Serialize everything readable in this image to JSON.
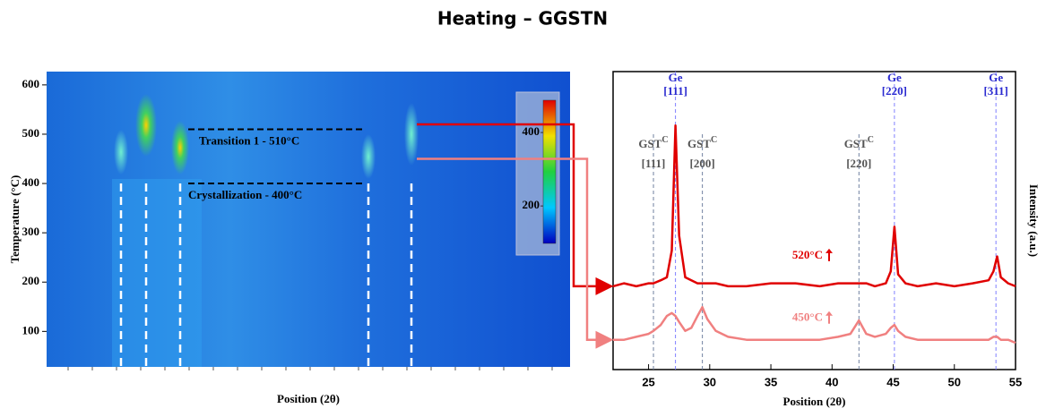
{
  "title": "Heating – GGSTN",
  "chart_data": [
    {
      "type": "heatmap",
      "ylabel": "Temperature (°C)",
      "xlabel": "Position (2θ)",
      "ylim": [
        28,
        627
      ],
      "yticks": [
        100,
        200,
        300,
        400,
        500,
        600
      ],
      "annotations": [
        {
          "text": "Transition 1 -  510°C",
          "temperature": 510
        },
        {
          "text": "Crystallization - 400°C",
          "temperature": 400
        }
      ],
      "colorbar": {
        "lim": [
          98,
          488
        ],
        "ticks": [
          200,
          400
        ]
      }
    },
    {
      "type": "line",
      "xlabel": "Position (2θ)",
      "ylabel": "Intensity (a.u.)",
      "xlim": [
        22.1,
        55
      ],
      "xticks": [
        25,
        30,
        35,
        40,
        45,
        50,
        55
      ],
      "ylim": [
        0,
        89
      ],
      "x": [
        22.1,
        23,
        24,
        25,
        25.4,
        26,
        26.5,
        26.9,
        27.2,
        27.5,
        28,
        28.5,
        29,
        29.4,
        29.8,
        30.5,
        31.5,
        33,
        35,
        37,
        39,
        40.5,
        41.5,
        42.2,
        42.8,
        43.5,
        44.4,
        44.8,
        45.1,
        45.4,
        46,
        47,
        48.5,
        50,
        51.5,
        52.8,
        53.2,
        53.5,
        53.8,
        54.4,
        55
      ],
      "series": [
        {
          "name": "520°C",
          "temperature": 520,
          "color": "#e00000",
          "values": [
            28,
            29,
            28,
            29,
            29,
            30,
            31,
            40,
            82,
            45,
            31,
            30,
            29,
            29,
            29,
            29,
            28,
            28,
            29,
            29,
            28,
            29,
            29,
            29,
            29,
            28,
            29,
            33,
            48,
            32,
            29,
            28,
            29,
            28,
            29,
            30,
            33,
            38,
            31,
            29,
            28
          ]
        },
        {
          "name": "450°C",
          "temperature": 450,
          "color": "#f08080",
          "values": [
            10,
            10,
            11,
            12,
            13,
            15,
            18,
            19,
            18,
            16,
            13,
            14,
            18,
            21,
            17,
            13,
            11,
            10,
            10,
            10,
            10,
            11,
            12,
            16.5,
            12,
            11,
            12,
            14,
            15,
            13,
            11,
            10,
            10,
            10,
            10,
            10,
            11,
            11,
            10,
            10,
            9
          ]
        }
      ],
      "reflections": [
        {
          "phase": "GST",
          "sup": "C",
          "hkl": "[111]",
          "position": 25.4,
          "color": "#555555"
        },
        {
          "phase": "Ge",
          "hkl": "[111]",
          "position": 27.2,
          "color": "#2a2ad0"
        },
        {
          "phase": "GST",
          "sup": "C",
          "hkl": "[200]",
          "position": 29.4,
          "color": "#555555"
        },
        {
          "phase": "GST",
          "sup": "C",
          "hkl": "[220]",
          "position": 42.2,
          "color": "#555555"
        },
        {
          "phase": "Ge",
          "hkl": "[220]",
          "position": 45.1,
          "color": "#2a2ad0"
        },
        {
          "phase": "Ge",
          "hkl": "[311]",
          "position": 53.4,
          "color": "#2a2ad0"
        }
      ]
    }
  ]
}
